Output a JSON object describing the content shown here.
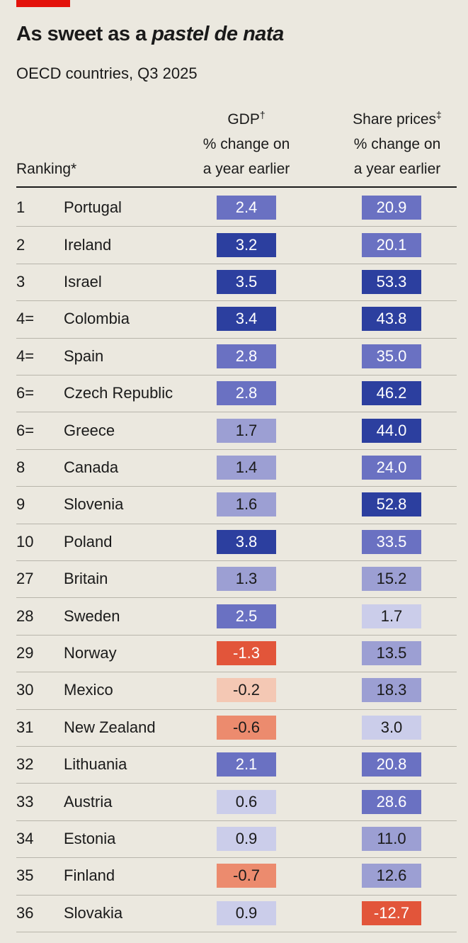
{
  "header": {
    "title_start": "As sweet as a ",
    "title_italic": "pastel de nata",
    "subtitle": "OECD countries, Q3 2025"
  },
  "table": {
    "columns": [
      {
        "label": "Ranking*"
      },
      {
        "title": "GDP",
        "mark": "†",
        "line1": "% change on",
        "line2": "a year earlier"
      },
      {
        "title": "Share prices",
        "mark": "‡",
        "line1": "% change on",
        "line2": "a year earlier"
      }
    ],
    "rows": [
      {
        "rank": "1",
        "country": "Portugal",
        "gdp": "2.4",
        "gdp_color": "#6a71c2",
        "share": "20.9",
        "share_color": "#6a71c2"
      },
      {
        "rank": "2",
        "country": "Ireland",
        "gdp": "3.2",
        "gdp_color": "#2c3f9f",
        "share": "20.1",
        "share_color": "#6a71c2"
      },
      {
        "rank": "3",
        "country": "Israel",
        "gdp": "3.5",
        "gdp_color": "#2c3f9f",
        "share": "53.3",
        "share_color": "#2c3f9f"
      },
      {
        "rank": "4=",
        "country": "Colombia",
        "gdp": "3.4",
        "gdp_color": "#2c3f9f",
        "share": "43.8",
        "share_color": "#2c3f9f"
      },
      {
        "rank": "4=",
        "country": "Spain",
        "gdp": "2.8",
        "gdp_color": "#6a71c2",
        "share": "35.0",
        "share_color": "#6a71c2"
      },
      {
        "rank": "6=",
        "country": "Czech Republic",
        "gdp": "2.8",
        "gdp_color": "#6a71c2",
        "share": "46.2",
        "share_color": "#2c3f9f"
      },
      {
        "rank": "6=",
        "country": "Greece",
        "gdp": "1.7",
        "gdp_color": "#9c9fd3",
        "share": "44.0",
        "share_color": "#2c3f9f"
      },
      {
        "rank": "8",
        "country": "Canada",
        "gdp": "1.4",
        "gdp_color": "#9c9fd3",
        "share": "24.0",
        "share_color": "#6a71c2"
      },
      {
        "rank": "9",
        "country": "Slovenia",
        "gdp": "1.6",
        "gdp_color": "#9c9fd3",
        "share": "52.8",
        "share_color": "#2c3f9f"
      },
      {
        "rank": "10",
        "country": "Poland",
        "gdp": "3.8",
        "gdp_color": "#2c3f9f",
        "share": "33.5",
        "share_color": "#6a71c2"
      },
      {
        "rank": "27",
        "country": "Britain",
        "gdp": "1.3",
        "gdp_color": "#9c9fd3",
        "share": "15.2",
        "share_color": "#9c9fd3"
      },
      {
        "rank": "28",
        "country": "Sweden",
        "gdp": "2.5",
        "gdp_color": "#6a71c2",
        "share": "1.7",
        "share_color": "#cbcdea"
      },
      {
        "rank": "29",
        "country": "Norway",
        "gdp": "-1.3",
        "gdp_color": "#e2553a",
        "share": "13.5",
        "share_color": "#9c9fd3"
      },
      {
        "rank": "30",
        "country": "Mexico",
        "gdp": "-0.2",
        "gdp_color": "#f4c8b4",
        "share": "18.3",
        "share_color": "#9c9fd3"
      },
      {
        "rank": "31",
        "country": "New Zealand",
        "gdp": "-0.6",
        "gdp_color": "#ec8b6e",
        "share": "3.0",
        "share_color": "#cbcdea"
      },
      {
        "rank": "32",
        "country": "Lithuania",
        "gdp": "2.1",
        "gdp_color": "#6a71c2",
        "share": "20.8",
        "share_color": "#6a71c2"
      },
      {
        "rank": "33",
        "country": "Austria",
        "gdp": "0.6",
        "gdp_color": "#cbcdea",
        "share": "28.6",
        "share_color": "#6a71c2"
      },
      {
        "rank": "34",
        "country": "Estonia",
        "gdp": "0.9",
        "gdp_color": "#cbcdea",
        "share": "11.0",
        "share_color": "#9c9fd3"
      },
      {
        "rank": "35",
        "country": "Finland",
        "gdp": "-0.7",
        "gdp_color": "#ec8b6e",
        "share": "12.6",
        "share_color": "#9c9fd3"
      },
      {
        "rank": "36",
        "country": "Slovakia",
        "gdp": "0.9",
        "gdp_color": "#cbcdea",
        "share": "-12.7",
        "share_color": "#e2553a"
      }
    ]
  }
}
